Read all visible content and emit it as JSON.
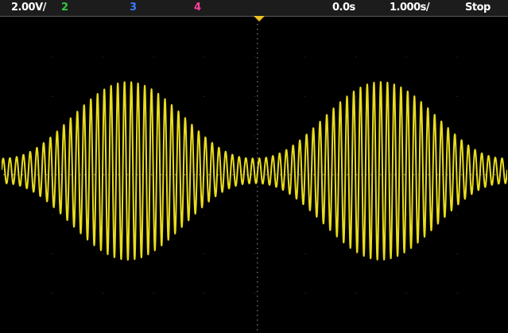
{
  "status_bar": {
    "ch1_scale": "2.00V/",
    "ch2_label": "2",
    "ch3_label": "3",
    "ch4_label": "4",
    "time_delay": "0.0s",
    "time_scale": "1.000s/",
    "run_state": "Stop"
  },
  "colors": {
    "ch1": "#e8dc1e",
    "ch2": "#2ecc40",
    "ch3": "#3a7bff",
    "ch4": "#ff3fa0",
    "text": "#ffffff",
    "background": "#000000",
    "grid": "#6a6a6a",
    "trigger_marker": "#f0c020"
  },
  "waveform": {
    "channel": 1,
    "carrier_cycles": 75,
    "envelope_cycles": 2,
    "modulation_min": 0.14,
    "modulation_max": 1.0
  }
}
